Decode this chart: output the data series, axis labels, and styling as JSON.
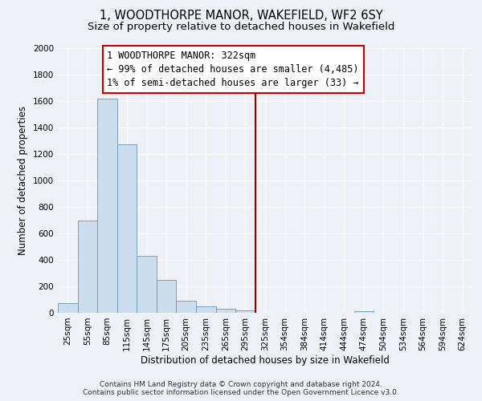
{
  "title": "1, WOODTHORPE MANOR, WAKEFIELD, WF2 6SY",
  "subtitle": "Size of property relative to detached houses in Wakefield",
  "xlabel": "Distribution of detached houses by size in Wakefield",
  "ylabel": "Number of detached properties",
  "bin_labels": [
    "25sqm",
    "55sqm",
    "85sqm",
    "115sqm",
    "145sqm",
    "175sqm",
    "205sqm",
    "235sqm",
    "265sqm",
    "295sqm",
    "325sqm",
    "354sqm",
    "384sqm",
    "414sqm",
    "444sqm",
    "474sqm",
    "504sqm",
    "534sqm",
    "564sqm",
    "594sqm",
    "624sqm"
  ],
  "bar_values": [
    70,
    695,
    1620,
    1270,
    430,
    250,
    90,
    50,
    30,
    20,
    0,
    0,
    0,
    0,
    0,
    10,
    0,
    0,
    0,
    0,
    0
  ],
  "bar_color": "#ccdded",
  "bar_edge_color": "#6699bb",
  "vline_color": "#990000",
  "annotation_line1": "1 WOODTHORPE MANOR: 322sqm",
  "annotation_line2": "← 99% of detached houses are smaller (4,485)",
  "annotation_line3": "1% of semi-detached houses are larger (33) →",
  "annotation_box_facecolor": "white",
  "annotation_box_edgecolor": "#cc0000",
  "ylim": [
    0,
    2000
  ],
  "yticks": [
    0,
    200,
    400,
    600,
    800,
    1000,
    1200,
    1400,
    1600,
    1800,
    2000
  ],
  "bg_color": "#eef2f7",
  "grid_color": "#ffffff",
  "title_fontsize": 10.5,
  "subtitle_fontsize": 9.5,
  "axis_label_fontsize": 8.5,
  "tick_fontsize": 7.5,
  "annotation_fontsize": 8.5,
  "footer_fontsize": 6.5,
  "footer_line1": "Contains HM Land Registry data © Crown copyright and database right 2024.",
  "footer_line2": "Contains public sector information licensed under the Open Government Licence v3.0."
}
